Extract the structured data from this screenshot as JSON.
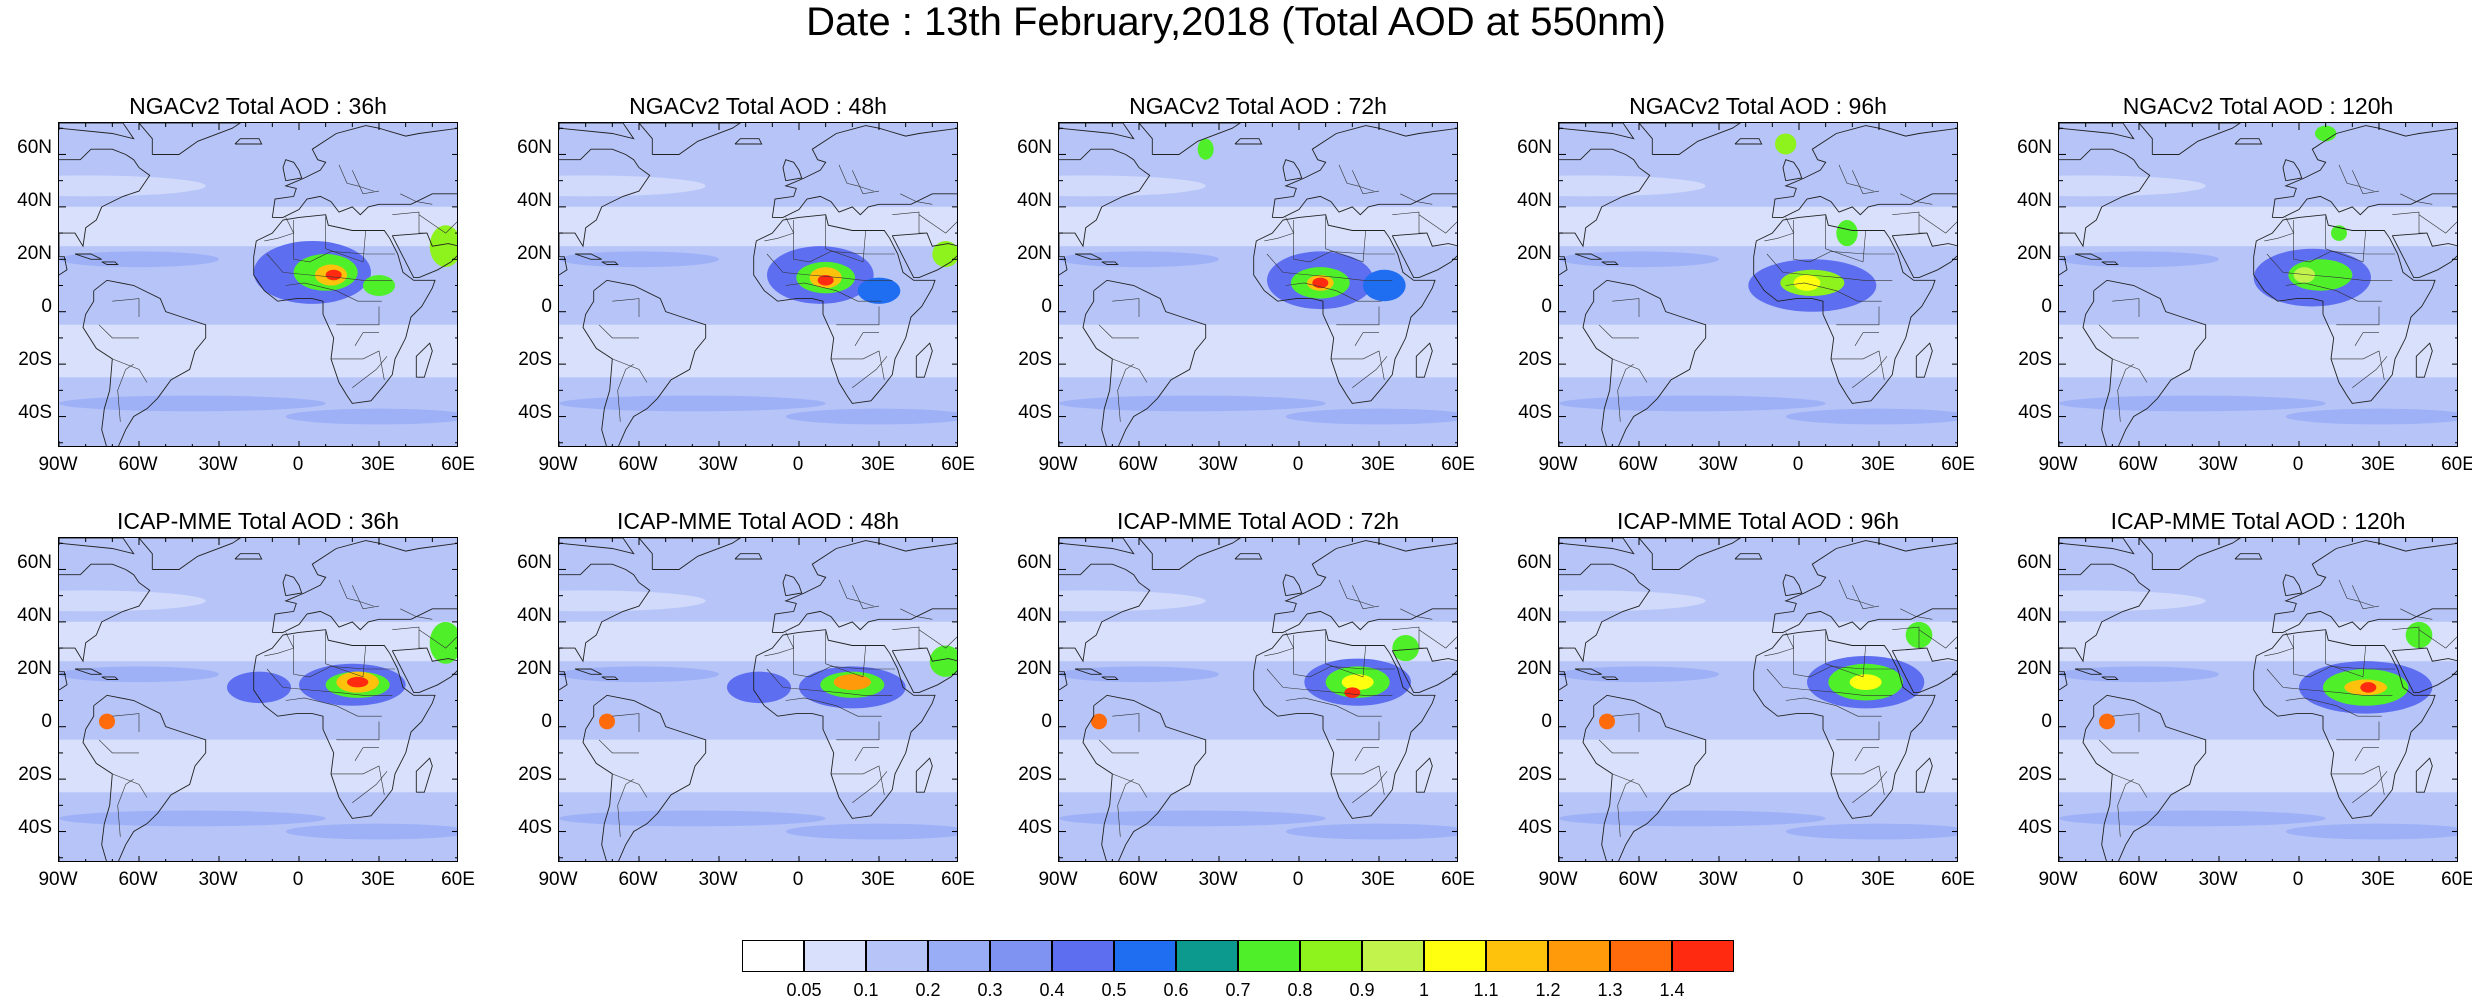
{
  "figure": {
    "title": "Date : 13th February,2018 (Total AOD at 550nm)"
  },
  "rows": [
    {
      "model": "NGACv2",
      "panels": [
        {
          "title": "NGACv2 Total AOD : 36h",
          "lead": "36h"
        },
        {
          "title": "NGACv2 Total AOD : 48h",
          "lead": "48h"
        },
        {
          "title": "NGACv2 Total AOD : 72h",
          "lead": "72h"
        },
        {
          "title": "NGACv2 Total AOD : 96h",
          "lead": "96h"
        },
        {
          "title": "NGACv2 Total AOD : 120h",
          "lead": "120h"
        }
      ]
    },
    {
      "model": "ICAP-MME",
      "panels": [
        {
          "title": "ICAP-MME Total AOD : 36h",
          "lead": "36h"
        },
        {
          "title": "ICAP-MME Total AOD : 48h",
          "lead": "48h"
        },
        {
          "title": "ICAP-MME Total AOD : 72h",
          "lead": "72h"
        },
        {
          "title": "ICAP-MME Total AOD : 96h",
          "lead": "96h"
        },
        {
          "title": "ICAP-MME Total AOD : 120h",
          "lead": "120h"
        }
      ]
    }
  ],
  "axes": {
    "lat_labels": [
      "60N",
      "40N",
      "20N",
      "0",
      "20S",
      "40S"
    ],
    "lon_labels": [
      "90W",
      "60W",
      "30W",
      "0",
      "30E",
      "60E"
    ]
  },
  "colorbar": {
    "labels": [
      "0.05",
      "0.1",
      "0.2",
      "0.3",
      "0.4",
      "0.5",
      "0.6",
      "0.7",
      "0.8",
      "0.9",
      "1",
      "1.1",
      "1.2",
      "1.3",
      "1.4"
    ],
    "colors": [
      "#ffffff",
      "#d8e0fb",
      "#b6c4f8",
      "#98adf6",
      "#7f94f2",
      "#5e6ef0",
      "#1f6df0",
      "#0d9a8e",
      "#4ff02a",
      "#8ef21c",
      "#c2f24c",
      "#ffff10",
      "#ffc20c",
      "#ff9a0a",
      "#ff6a0a",
      "#ff2a10"
    ]
  }
}
